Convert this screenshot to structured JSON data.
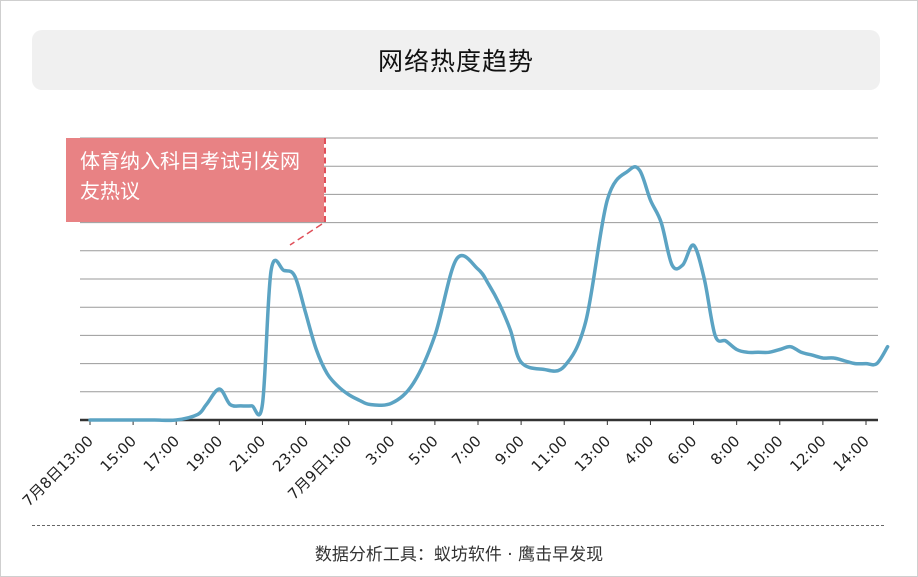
{
  "title": "网络热度趋势",
  "footer": "数据分析工具：蚁坊软件 · 鹰击早发现",
  "annotation": {
    "text": "体育纳入科目考试引发网友热议",
    "color": "#e88284"
  },
  "colors": {
    "line": "#5ba3c3",
    "grid": "#9a9a9a",
    "baseline": "#333333"
  },
  "chart_data": {
    "type": "line",
    "title": "网络热度趋势",
    "x_tick_labels": [
      "7月8日13:00",
      "15:00",
      "17:00",
      "19:00",
      "21:00",
      "23:00",
      "7月9日1:00",
      "3:00",
      "5:00",
      "7:00",
      "9:00",
      "11:00",
      "13:00",
      "4:00",
      "6:00",
      "8:00",
      "10:00",
      "12:00",
      "14:00"
    ],
    "x": [
      0,
      0.5,
      1,
      1.5,
      2,
      2.5,
      2.7,
      3,
      3.25,
      3.5,
      3.75,
      4,
      4.2,
      4.5,
      4.75,
      5,
      5.25,
      5.5,
      5.75,
      6,
      6.25,
      6.5,
      7,
      7.5,
      8,
      8.5,
      9,
      9.25,
      9.5,
      9.75,
      10,
      10.5,
      11,
      11.5,
      12,
      12.5,
      12.75,
      13,
      13.25,
      13.5,
      13.75,
      14,
      14.25,
      14.5,
      14.75,
      15,
      15.25,
      15.5,
      15.75,
      16,
      16.25,
      16.5,
      16.75,
      17,
      17.25,
      17.5,
      17.75,
      18,
      18.25,
      18.5
    ],
    "y": [
      0,
      0,
      0,
      0,
      0,
      0.2,
      0.55,
      1.1,
      0.55,
      0.5,
      0.5,
      0.55,
      5.3,
      5.3,
      5.1,
      3.8,
      2.5,
      1.65,
      1.2,
      0.9,
      0.7,
      0.55,
      0.6,
      1.3,
      3.0,
      5.7,
      5.35,
      4.8,
      4.1,
      3.2,
      2.05,
      1.8,
      1.9,
      3.5,
      7.8,
      8.85,
      8.85,
      7.8,
      7.0,
      5.5,
      5.5,
      6.2,
      5.0,
      3.0,
      2.8,
      2.5,
      2.4,
      2.4,
      2.4,
      2.5,
      2.6,
      2.4,
      2.3,
      2.2,
      2.2,
      2.1,
      2.0,
      2.0,
      2.0,
      2.6
    ],
    "y_range": [
      0,
      10
    ],
    "gridlines": 10,
    "grid": true
  }
}
